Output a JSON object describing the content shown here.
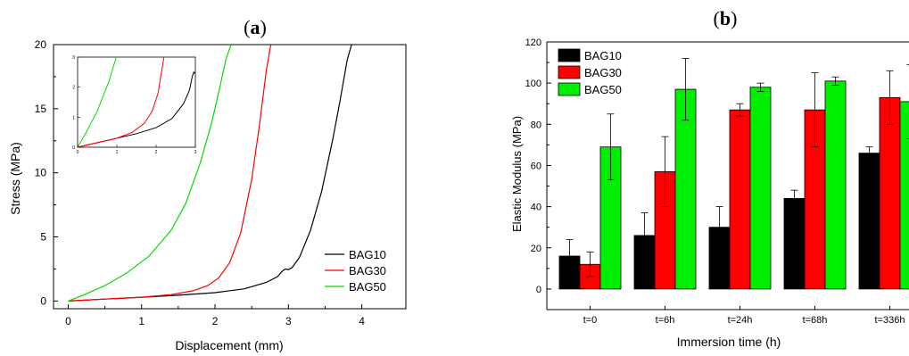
{
  "chart_data": [
    {
      "panel_label": "a",
      "type": "line",
      "xlabel": "Displacement (mm)",
      "ylabel": "Stress (MPa)",
      "xlim": [
        -0.2,
        4.6
      ],
      "ylim": [
        -0.6,
        20
      ],
      "xticks": [
        "0",
        "1",
        "2",
        "3",
        "4"
      ],
      "yticks": [
        "0",
        "5",
        "10",
        "15",
        "20"
      ],
      "legend_position": "bottom-right",
      "series": [
        {
          "name": "BAG10",
          "color": "#000000",
          "x": [
            0,
            0.5,
            1.0,
            1.5,
            2.0,
            2.4,
            2.7,
            2.85,
            2.92,
            2.96,
            3.0,
            3.05,
            3.15,
            3.3,
            3.45,
            3.6,
            3.7,
            3.8,
            3.86
          ],
          "y": [
            0,
            0.15,
            0.3,
            0.45,
            0.65,
            0.95,
            1.45,
            1.9,
            2.35,
            2.5,
            2.45,
            2.6,
            3.4,
            5.5,
            8.5,
            12.5,
            15.5,
            18.8,
            20
          ]
        },
        {
          "name": "BAG30",
          "color": "#ff0000",
          "x": [
            0,
            0.5,
            1.0,
            1.4,
            1.7,
            1.9,
            2.05,
            2.2,
            2.35,
            2.5,
            2.6,
            2.7,
            2.76
          ],
          "y": [
            0,
            0.15,
            0.3,
            0.5,
            0.8,
            1.2,
            1.8,
            3.0,
            5.3,
            9.5,
            13.5,
            18.0,
            20
          ]
        },
        {
          "name": "BAG50",
          "color": "#00dd00",
          "x": [
            0,
            0.2,
            0.5,
            0.8,
            1.1,
            1.4,
            1.6,
            1.8,
            1.95,
            2.05,
            2.15,
            2.22
          ],
          "y": [
            0,
            0.45,
            1.2,
            2.2,
            3.5,
            5.5,
            7.6,
            10.8,
            13.8,
            16.3,
            18.9,
            20
          ]
        }
      ],
      "inset": {
        "xlim": [
          0,
          3
        ],
        "ylim": [
          0,
          3
        ],
        "xticks": [
          "0",
          "1",
          "2",
          "3"
        ],
        "yticks": [
          "0",
          "1",
          "2",
          "3"
        ]
      }
    },
    {
      "panel_label": "b",
      "type": "bar",
      "xlabel": "Immersion time (h)",
      "ylabel": "Elastic Modulus (MPa)",
      "ylim": [
        -10,
        120
      ],
      "yticks": [
        "0",
        "20",
        "40",
        "60",
        "80",
        "100",
        "120"
      ],
      "categories": [
        "t=0",
        "t=6h",
        "t=24h",
        "t=68h",
        "t=336h"
      ],
      "legend_position": "top-left",
      "series": [
        {
          "name": "BAG10",
          "color": "#000000",
          "values": [
            16,
            26,
            30,
            44,
            66
          ],
          "errors": [
            8,
            11,
            10,
            4,
            3
          ]
        },
        {
          "name": "BAG30",
          "color": "#ff0000",
          "values": [
            12,
            57,
            87,
            87,
            93
          ],
          "errors": [
            6,
            17,
            3,
            18,
            13
          ]
        },
        {
          "name": "BAG50",
          "color": "#00ee00",
          "values": [
            69,
            97,
            98,
            101,
            91
          ],
          "errors": [
            16,
            15,
            2,
            2,
            18
          ]
        }
      ]
    }
  ]
}
